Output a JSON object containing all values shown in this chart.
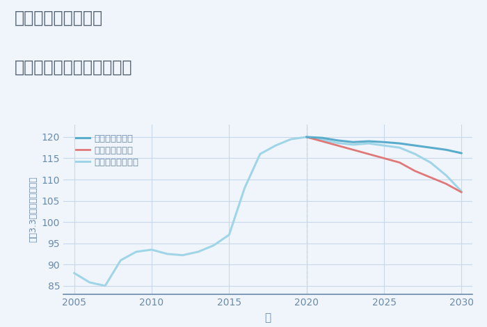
{
  "title_line1": "兵庫県姫路市庄田の",
  "title_line2": "中古マンションの価格推移",
  "xlabel": "年",
  "ylabel": "坪（3.3㎡）単価（万円）",
  "bg_color": "#f0f5fb",
  "grid_color": "#c8d8ea",
  "title_color": "#526070",
  "axis_color": "#6a8aaa",
  "tick_color": "#6a8aaa",
  "historical_years": [
    2005,
    2006,
    2007,
    2008,
    2009,
    2010,
    2011,
    2012,
    2013,
    2014,
    2015,
    2016,
    2017,
    2018,
    2019,
    2020
  ],
  "historical_values": [
    88.0,
    85.8,
    85.0,
    91.0,
    93.0,
    93.5,
    92.5,
    92.2,
    93.0,
    94.5,
    97.0,
    108.0,
    116.0,
    118.0,
    119.5,
    120.0
  ],
  "forecast_years": [
    2020,
    2021,
    2022,
    2023,
    2024,
    2025,
    2026,
    2027,
    2028,
    2029,
    2030
  ],
  "good_values": [
    120.0,
    119.8,
    119.2,
    118.8,
    119.0,
    118.8,
    118.5,
    118.0,
    117.5,
    117.0,
    116.2
  ],
  "bad_values": [
    120.0,
    119.0,
    118.0,
    117.0,
    116.0,
    115.0,
    114.0,
    112.0,
    110.5,
    109.0,
    107.0
  ],
  "normal_values": [
    120.0,
    119.3,
    118.6,
    118.2,
    118.5,
    118.0,
    117.5,
    116.0,
    114.0,
    111.0,
    107.2
  ],
  "good_color": "#5aaccc",
  "bad_color": "#e07878",
  "normal_color": "#a0d5e8",
  "hist_color": "#a0d5e8",
  "ylim": [
    83,
    123
  ],
  "xlim": [
    2004.3,
    2030.7
  ],
  "yticks": [
    85,
    90,
    95,
    100,
    105,
    110,
    115,
    120
  ],
  "xticks": [
    2005,
    2010,
    2015,
    2020,
    2025,
    2030
  ],
  "legend_labels": [
    "グッドシナリオ",
    "バッドシナリオ",
    "ノーマルシナリオ"
  ],
  "legend_colors": [
    "#5aaccc",
    "#e07878",
    "#a0d5e8"
  ],
  "legend_linestyles": [
    "-",
    "-",
    "-"
  ],
  "legend_linewidths": [
    2.2,
    2.0,
    2.2
  ]
}
